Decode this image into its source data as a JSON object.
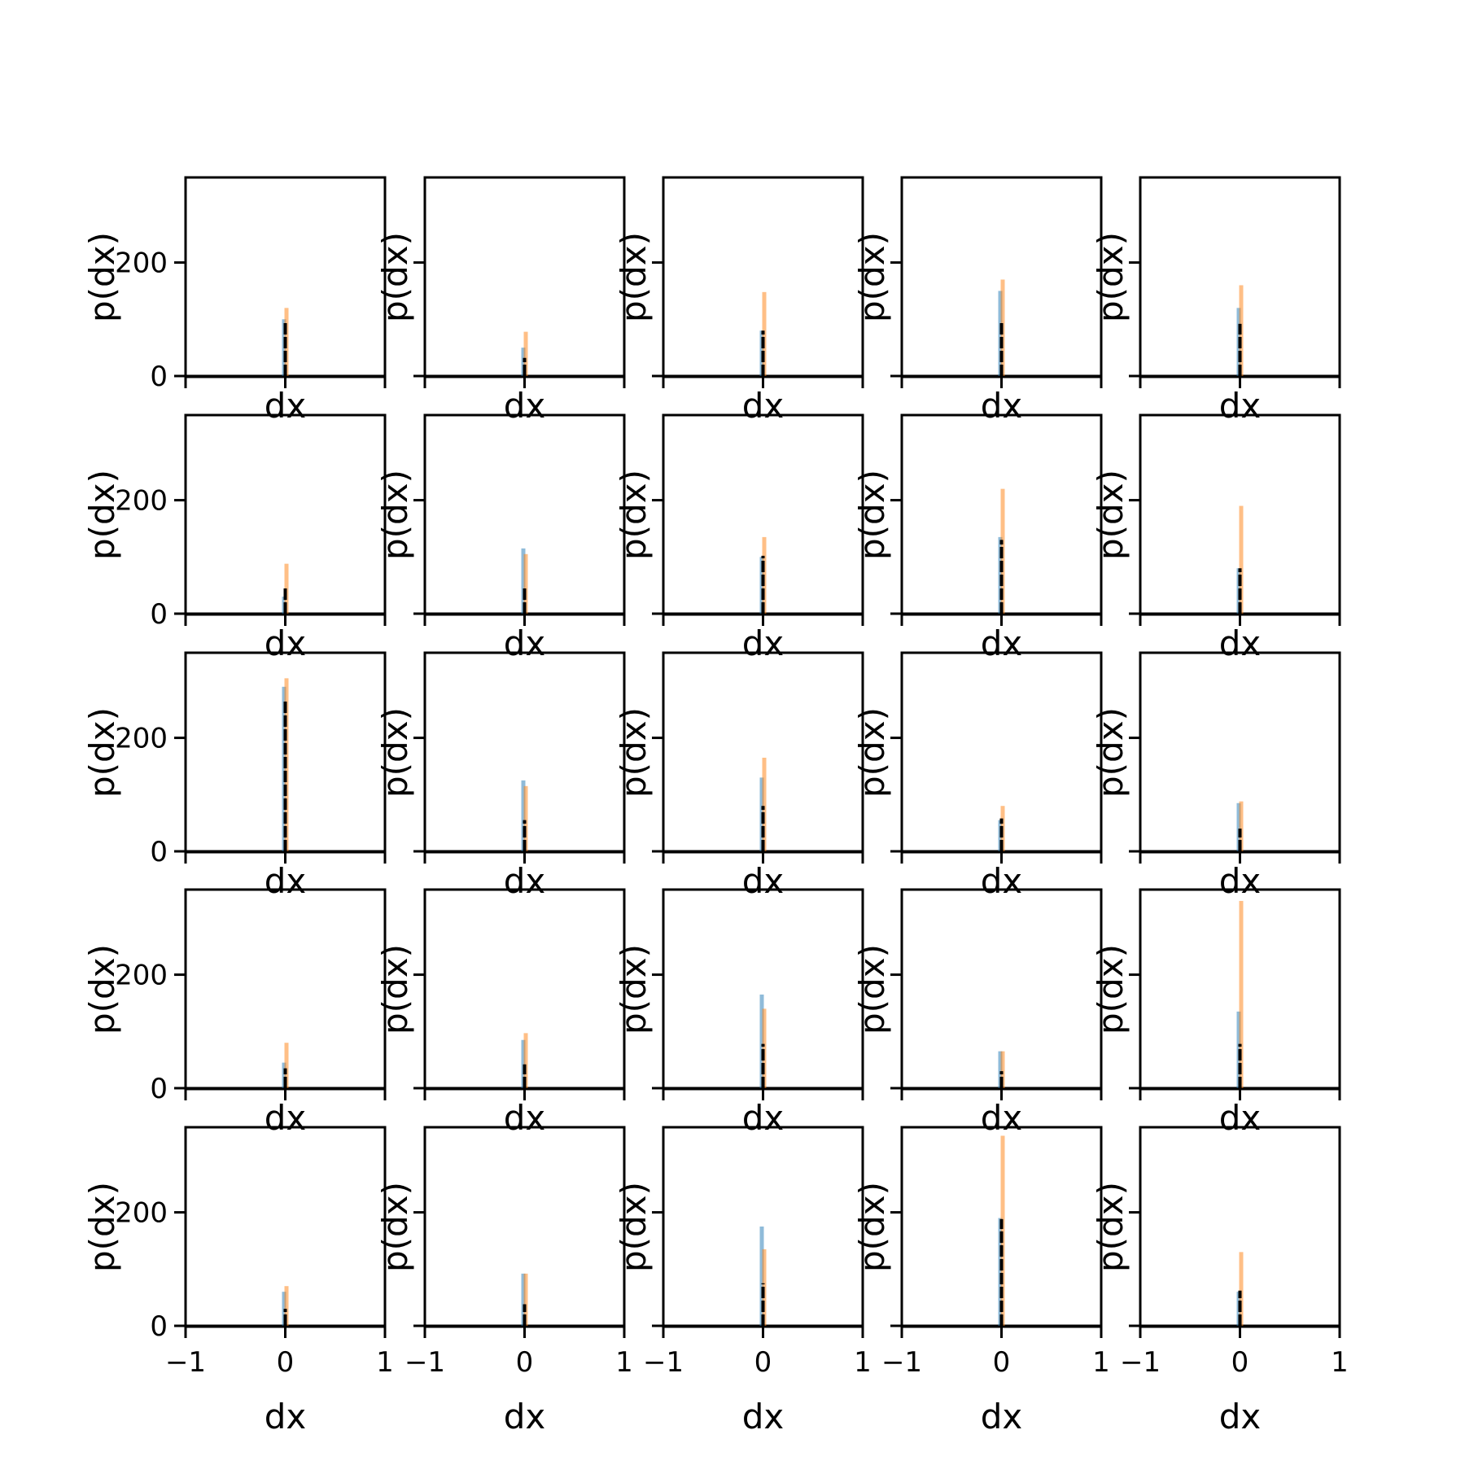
{
  "colors": {
    "series_a": "#1f77b4",
    "series_b": "#ff7f0e",
    "line": "#000000",
    "background": "#ffffff"
  },
  "layout": {
    "rows": 5,
    "cols": 5,
    "sharex": true,
    "sharey": true
  },
  "chart_data": {
    "type": "bar",
    "grid": false,
    "xlabel": "dx",
    "ylabel": "p(dx)",
    "xlim": [
      -1,
      1
    ],
    "ylim": [
      0,
      350
    ],
    "xticks": [
      -1,
      0,
      1
    ],
    "xtick_labels": [
      "−1",
      "0",
      "1"
    ],
    "yticks": [
      0,
      200
    ],
    "ytick_labels": [
      "0",
      "200"
    ],
    "panels": [
      {
        "row": 0,
        "col": 0,
        "series_a_peak": 100,
        "series_b_peak": 120,
        "line_peak": 95
      },
      {
        "row": 0,
        "col": 1,
        "series_a_peak": 50,
        "series_b_peak": 78,
        "line_peak": 32
      },
      {
        "row": 0,
        "col": 2,
        "series_a_peak": 80,
        "series_b_peak": 148,
        "line_peak": 80
      },
      {
        "row": 0,
        "col": 3,
        "series_a_peak": 150,
        "series_b_peak": 170,
        "line_peak": 95
      },
      {
        "row": 0,
        "col": 4,
        "series_a_peak": 120,
        "series_b_peak": 160,
        "line_peak": 92
      },
      {
        "row": 1,
        "col": 0,
        "series_a_peak": 30,
        "series_b_peak": 88,
        "line_peak": 47
      },
      {
        "row": 1,
        "col": 1,
        "series_a_peak": 115,
        "series_b_peak": 105,
        "line_peak": 45
      },
      {
        "row": 1,
        "col": 2,
        "series_a_peak": 100,
        "series_b_peak": 135,
        "line_peak": 102
      },
      {
        "row": 1,
        "col": 3,
        "series_a_peak": 135,
        "series_b_peak": 220,
        "line_peak": 130
      },
      {
        "row": 1,
        "col": 4,
        "series_a_peak": 80,
        "series_b_peak": 190,
        "line_peak": 80
      },
      {
        "row": 2,
        "col": 0,
        "series_a_peak": 290,
        "series_b_peak": 305,
        "line_peak": 265
      },
      {
        "row": 2,
        "col": 1,
        "series_a_peak": 125,
        "series_b_peak": 115,
        "line_peak": 55
      },
      {
        "row": 2,
        "col": 2,
        "series_a_peak": 130,
        "series_b_peak": 165,
        "line_peak": 80
      },
      {
        "row": 2,
        "col": 3,
        "series_a_peak": 55,
        "series_b_peak": 80,
        "line_peak": 58
      },
      {
        "row": 2,
        "col": 4,
        "series_a_peak": 85,
        "series_b_peak": 88,
        "line_peak": 40
      },
      {
        "row": 3,
        "col": 0,
        "series_a_peak": 45,
        "series_b_peak": 80,
        "line_peak": 35
      },
      {
        "row": 3,
        "col": 1,
        "series_a_peak": 85,
        "series_b_peak": 97,
        "line_peak": 42
      },
      {
        "row": 3,
        "col": 2,
        "series_a_peak": 165,
        "series_b_peak": 140,
        "line_peak": 78
      },
      {
        "row": 3,
        "col": 3,
        "series_a_peak": 65,
        "series_b_peak": 65,
        "line_peak": 30
      },
      {
        "row": 3,
        "col": 4,
        "series_a_peak": 135,
        "series_b_peak": 330,
        "line_peak": 78
      },
      {
        "row": 4,
        "col": 0,
        "series_a_peak": 60,
        "series_b_peak": 70,
        "line_peak": 30
      },
      {
        "row": 4,
        "col": 1,
        "series_a_peak": 92,
        "series_b_peak": 92,
        "line_peak": 38
      },
      {
        "row": 4,
        "col": 2,
        "series_a_peak": 175,
        "series_b_peak": 135,
        "line_peak": 75
      },
      {
        "row": 4,
        "col": 3,
        "series_a_peak": 190,
        "series_b_peak": 335,
        "line_peak": 188
      },
      {
        "row": 4,
        "col": 4,
        "series_a_peak": 60,
        "series_b_peak": 130,
        "line_peak": 62
      }
    ]
  }
}
